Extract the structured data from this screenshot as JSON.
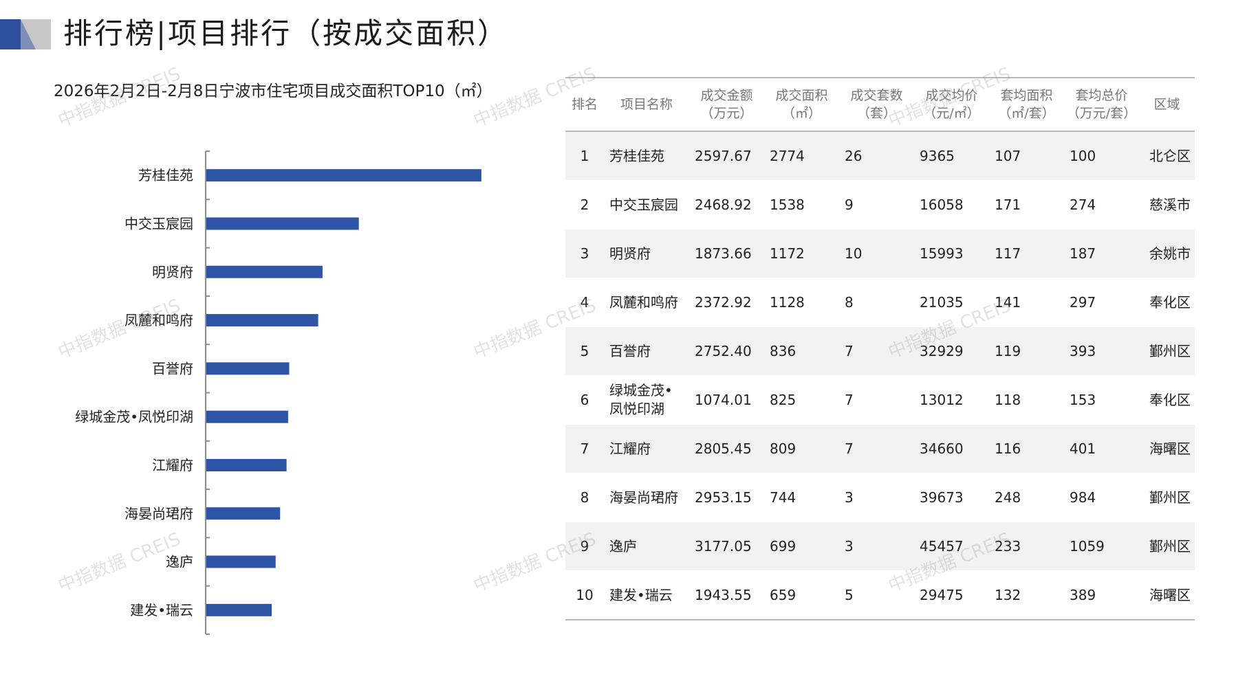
{
  "header": {
    "title": "排行榜|项目排行（按成交面积）",
    "chart_title": "2026年2月2日-2月8日宁波市住宅项目成交面积TOP10（㎡）"
  },
  "colors": {
    "bar": "#2e54a6",
    "logo_dark": "#2e4f9b",
    "logo_light": "#c8c8c8"
  },
  "watermark": "中指数据 CREIS",
  "chart_data": {
    "type": "bar",
    "orientation": "horizontal",
    "title": "2026年2月2日-2月8日宁波市住宅项目成交面积TOP10（㎡）",
    "categories": [
      "芳桂佳苑",
      "中交玉宸园",
      "明贤府",
      "凤麓和鸣府",
      "百誉府",
      "绿城金茂•凤悦印湖",
      "江耀府",
      "海晏尚珺府",
      "逸庐",
      "建发•瑞云"
    ],
    "values": [
      2774,
      1538,
      1172,
      1128,
      836,
      825,
      809,
      744,
      699,
      659
    ],
    "xlim": [
      0,
      2900
    ],
    "grid": false,
    "legend": "none"
  },
  "table": {
    "headers": [
      [
        "排名"
      ],
      [
        "项目名称"
      ],
      [
        "成交金额",
        "（万元）"
      ],
      [
        "成交面积",
        "（㎡）"
      ],
      [
        "成交套数",
        "（套）"
      ],
      [
        "成交均价",
        "（元/㎡）"
      ],
      [
        "套均面积",
        "（㎡/套）"
      ],
      [
        "套均总价",
        "（万元/套）"
      ],
      [
        "区域"
      ]
    ],
    "rows": [
      [
        "1",
        "芳桂佳苑",
        "2597.67",
        "2774",
        "26",
        "9365",
        "107",
        "100",
        "北仑区"
      ],
      [
        "2",
        "中交玉宸园",
        "2468.92",
        "1538",
        "9",
        "16058",
        "171",
        "274",
        "慈溪市"
      ],
      [
        "3",
        "明贤府",
        "1873.66",
        "1172",
        "10",
        "15993",
        "117",
        "187",
        "余姚市"
      ],
      [
        "4",
        "凤麓和鸣府",
        "2372.92",
        "1128",
        "8",
        "21035",
        "141",
        "297",
        "奉化区"
      ],
      [
        "5",
        "百誉府",
        "2752.40",
        "836",
        "7",
        "32929",
        "119",
        "393",
        "鄞州区"
      ],
      [
        "6",
        "绿城金茂•凤悦印湖",
        "1074.01",
        "825",
        "7",
        "13012",
        "118",
        "153",
        "奉化区"
      ],
      [
        "7",
        "江耀府",
        "2805.45",
        "809",
        "7",
        "34660",
        "116",
        "401",
        "海曙区"
      ],
      [
        "8",
        "海晏尚珺府",
        "2953.15",
        "744",
        "3",
        "39673",
        "248",
        "984",
        "鄞州区"
      ],
      [
        "9",
        "逸庐",
        "3177.05",
        "699",
        "3",
        "45457",
        "233",
        "1059",
        "鄞州区"
      ],
      [
        "10",
        "建发•瑞云",
        "1943.55",
        "659",
        "5",
        "29475",
        "132",
        "389",
        "海曙区"
      ]
    ]
  }
}
